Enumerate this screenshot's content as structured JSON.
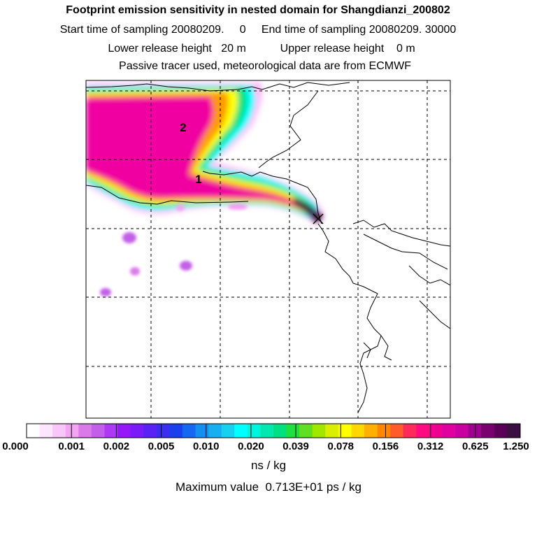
{
  "header": {
    "title": "Footprint emission sensitivity in nested domain for Shangdianzi_200802",
    "sampling_line": "Start time of sampling 20080209.     0     End time of sampling 20080209. 30000",
    "release_line": "Lower release height   20 m           Upper release height    0 m",
    "tracer_line": "Passive tracer used, meteorological data are from ECMWF"
  },
  "map": {
    "markers": [
      {
        "label": "1"
      },
      {
        "label": "2"
      }
    ],
    "grid_color": "#000000",
    "coastline_color": "#000000"
  },
  "colorbar": {
    "colors": [
      "#ffffff",
      "#fde6fd",
      "#f8c6f8",
      "#f2a6f2",
      "#d97ae8",
      "#c35ee8",
      "#ad38f5",
      "#9418f8",
      "#7a1cf8",
      "#5c22f5",
      "#3c2df2",
      "#1a40ee",
      "#1668f0",
      "#1590f0",
      "#16b0f0",
      "#18d0f0",
      "#00ffff",
      "#00f5dc",
      "#00e8b0",
      "#00e080",
      "#20e040",
      "#60e020",
      "#a0e800",
      "#d8f000",
      "#ffff00",
      "#ffd800",
      "#ffb000",
      "#ff8800",
      "#ff5a2a",
      "#ff2a5a",
      "#ff0a80",
      "#f00090",
      "#e000a0",
      "#c800a0",
      "#a00090",
      "#7a0070",
      "#5a0058",
      "#3a1040"
    ],
    "labels": [
      "0.000",
      "0.001",
      "0.002",
      "0.005",
      "0.010",
      "0.020",
      "0.039",
      "0.078",
      "0.156",
      "0.312",
      "0.625",
      "1.250"
    ],
    "units": "ns / kg",
    "max_value": "Maximum value  0.713E+01 ps / kg"
  }
}
